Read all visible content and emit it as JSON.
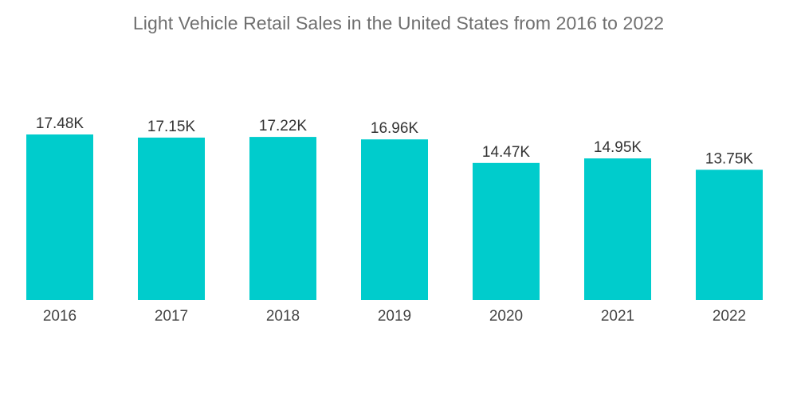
{
  "chart_data": {
    "type": "bar",
    "title": "Light Vehicle Retail Sales in the United States from 2016 to 2022",
    "xlabel": "",
    "ylabel": "",
    "categories": [
      "2016",
      "2017",
      "2018",
      "2019",
      "2020",
      "2021",
      "2022"
    ],
    "values": [
      17.48,
      17.15,
      17.22,
      16.96,
      14.47,
      14.95,
      13.75
    ],
    "data_labels": [
      "17.48K",
      "17.15K",
      "17.22K",
      "16.96K",
      "14.47K",
      "14.95K",
      "13.75K"
    ],
    "ylim": [
      0,
      17.48
    ],
    "grid": false,
    "legend": "none",
    "bar_color": "#00cccc"
  }
}
